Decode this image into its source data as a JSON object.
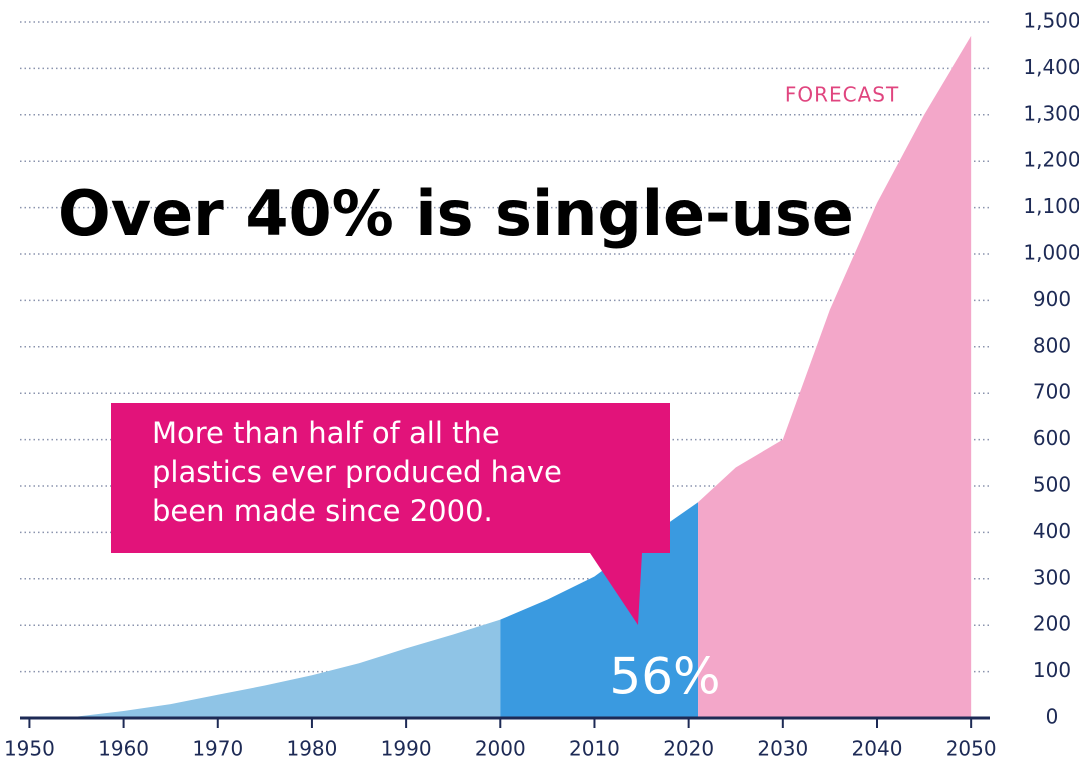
{
  "chart_data": {
    "type": "area",
    "title": "Over 40% is single-use",
    "annotations": {
      "forecast": "FORECAST",
      "callout": [
        "More than half of all the",
        "plastics ever produced have",
        "been made since 2000."
      ],
      "share": "56%"
    },
    "series": [
      {
        "color": "#8fc4e6",
        "x": [
          1950,
          1955,
          1960,
          1965,
          1970,
          1975,
          1980,
          1985,
          1990,
          1995,
          2000
        ],
        "values": [
          0,
          3,
          15,
          30,
          50,
          70,
          92,
          118,
          150,
          180,
          212
        ]
      },
      {
        "color": "#3a9ae0",
        "x": [
          2000,
          2005,
          2010,
          2015,
          2021
        ],
        "values": [
          212,
          255,
          305,
          380,
          465
        ]
      },
      {
        "color": "#f3a7c9",
        "x": [
          2021,
          2025,
          2030,
          2035,
          2040,
          2045,
          2050
        ],
        "values": [
          465,
          540,
          600,
          880,
          1110,
          1300,
          1470
        ]
      }
    ],
    "xlim": [
      1949,
      2052
    ],
    "xticks": [
      1950,
      1960,
      1970,
      1980,
      1990,
      2000,
      2010,
      2020,
      2030,
      2040,
      2050
    ],
    "ylim": [
      0,
      1500
    ],
    "yticks": [
      0,
      100,
      200,
      300,
      400,
      500,
      700,
      600,
      800,
      900,
      {
        "value": 1000,
        "label": "1,000"
      },
      {
        "value": 1100,
        "label": "1,100"
      },
      {
        "value": 1200,
        "label": "1,200"
      },
      {
        "value": 1300,
        "label": "1,300"
      },
      {
        "value": 1400,
        "label": "1,400"
      },
      {
        "value": 1500,
        "label": "1,500"
      }
    ],
    "grid": true
  }
}
